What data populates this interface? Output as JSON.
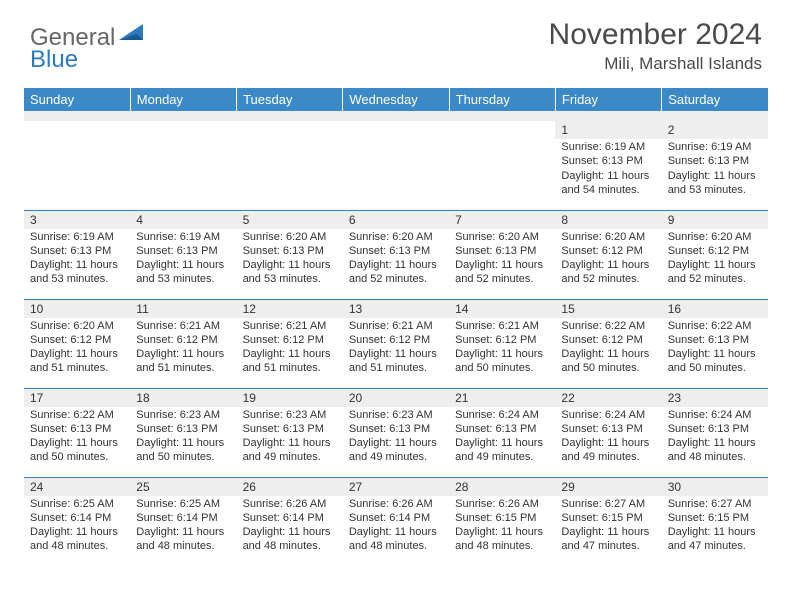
{
  "logo": {
    "text1": "General",
    "text2": "Blue"
  },
  "title": "November 2024",
  "location": "Mili, Marshall Islands",
  "colors": {
    "header_bg": "#3b89c7",
    "header_text": "#ffffff",
    "daynum_bg": "#eeeeee",
    "border": "#3b7fb3",
    "text": "#333333",
    "logo_gray": "#666666",
    "logo_blue": "#2b7bbf"
  },
  "weekdays": [
    "Sunday",
    "Monday",
    "Tuesday",
    "Wednesday",
    "Thursday",
    "Friday",
    "Saturday"
  ],
  "weeks": [
    [
      {
        "day": "",
        "lines": []
      },
      {
        "day": "",
        "lines": []
      },
      {
        "day": "",
        "lines": []
      },
      {
        "day": "",
        "lines": []
      },
      {
        "day": "",
        "lines": []
      },
      {
        "day": "1",
        "lines": [
          "Sunrise: 6:19 AM",
          "Sunset: 6:13 PM",
          "Daylight: 11 hours and 54 minutes."
        ]
      },
      {
        "day": "2",
        "lines": [
          "Sunrise: 6:19 AM",
          "Sunset: 6:13 PM",
          "Daylight: 11 hours and 53 minutes."
        ]
      }
    ],
    [
      {
        "day": "3",
        "lines": [
          "Sunrise: 6:19 AM",
          "Sunset: 6:13 PM",
          "Daylight: 11 hours and 53 minutes."
        ]
      },
      {
        "day": "4",
        "lines": [
          "Sunrise: 6:19 AM",
          "Sunset: 6:13 PM",
          "Daylight: 11 hours and 53 minutes."
        ]
      },
      {
        "day": "5",
        "lines": [
          "Sunrise: 6:20 AM",
          "Sunset: 6:13 PM",
          "Daylight: 11 hours and 53 minutes."
        ]
      },
      {
        "day": "6",
        "lines": [
          "Sunrise: 6:20 AM",
          "Sunset: 6:13 PM",
          "Daylight: 11 hours and 52 minutes."
        ]
      },
      {
        "day": "7",
        "lines": [
          "Sunrise: 6:20 AM",
          "Sunset: 6:13 PM",
          "Daylight: 11 hours and 52 minutes."
        ]
      },
      {
        "day": "8",
        "lines": [
          "Sunrise: 6:20 AM",
          "Sunset: 6:12 PM",
          "Daylight: 11 hours and 52 minutes."
        ]
      },
      {
        "day": "9",
        "lines": [
          "Sunrise: 6:20 AM",
          "Sunset: 6:12 PM",
          "Daylight: 11 hours and 52 minutes."
        ]
      }
    ],
    [
      {
        "day": "10",
        "lines": [
          "Sunrise: 6:20 AM",
          "Sunset: 6:12 PM",
          "Daylight: 11 hours and 51 minutes."
        ]
      },
      {
        "day": "11",
        "lines": [
          "Sunrise: 6:21 AM",
          "Sunset: 6:12 PM",
          "Daylight: 11 hours and 51 minutes."
        ]
      },
      {
        "day": "12",
        "lines": [
          "Sunrise: 6:21 AM",
          "Sunset: 6:12 PM",
          "Daylight: 11 hours and 51 minutes."
        ]
      },
      {
        "day": "13",
        "lines": [
          "Sunrise: 6:21 AM",
          "Sunset: 6:12 PM",
          "Daylight: 11 hours and 51 minutes."
        ]
      },
      {
        "day": "14",
        "lines": [
          "Sunrise: 6:21 AM",
          "Sunset: 6:12 PM",
          "Daylight: 11 hours and 50 minutes."
        ]
      },
      {
        "day": "15",
        "lines": [
          "Sunrise: 6:22 AM",
          "Sunset: 6:12 PM",
          "Daylight: 11 hours and 50 minutes."
        ]
      },
      {
        "day": "16",
        "lines": [
          "Sunrise: 6:22 AM",
          "Sunset: 6:13 PM",
          "Daylight: 11 hours and 50 minutes."
        ]
      }
    ],
    [
      {
        "day": "17",
        "lines": [
          "Sunrise: 6:22 AM",
          "Sunset: 6:13 PM",
          "Daylight: 11 hours and 50 minutes."
        ]
      },
      {
        "day": "18",
        "lines": [
          "Sunrise: 6:23 AM",
          "Sunset: 6:13 PM",
          "Daylight: 11 hours and 50 minutes."
        ]
      },
      {
        "day": "19",
        "lines": [
          "Sunrise: 6:23 AM",
          "Sunset: 6:13 PM",
          "Daylight: 11 hours and 49 minutes."
        ]
      },
      {
        "day": "20",
        "lines": [
          "Sunrise: 6:23 AM",
          "Sunset: 6:13 PM",
          "Daylight: 11 hours and 49 minutes."
        ]
      },
      {
        "day": "21",
        "lines": [
          "Sunrise: 6:24 AM",
          "Sunset: 6:13 PM",
          "Daylight: 11 hours and 49 minutes."
        ]
      },
      {
        "day": "22",
        "lines": [
          "Sunrise: 6:24 AM",
          "Sunset: 6:13 PM",
          "Daylight: 11 hours and 49 minutes."
        ]
      },
      {
        "day": "23",
        "lines": [
          "Sunrise: 6:24 AM",
          "Sunset: 6:13 PM",
          "Daylight: 11 hours and 48 minutes."
        ]
      }
    ],
    [
      {
        "day": "24",
        "lines": [
          "Sunrise: 6:25 AM",
          "Sunset: 6:14 PM",
          "Daylight: 11 hours and 48 minutes."
        ]
      },
      {
        "day": "25",
        "lines": [
          "Sunrise: 6:25 AM",
          "Sunset: 6:14 PM",
          "Daylight: 11 hours and 48 minutes."
        ]
      },
      {
        "day": "26",
        "lines": [
          "Sunrise: 6:26 AM",
          "Sunset: 6:14 PM",
          "Daylight: 11 hours and 48 minutes."
        ]
      },
      {
        "day": "27",
        "lines": [
          "Sunrise: 6:26 AM",
          "Sunset: 6:14 PM",
          "Daylight: 11 hours and 48 minutes."
        ]
      },
      {
        "day": "28",
        "lines": [
          "Sunrise: 6:26 AM",
          "Sunset: 6:15 PM",
          "Daylight: 11 hours and 48 minutes."
        ]
      },
      {
        "day": "29",
        "lines": [
          "Sunrise: 6:27 AM",
          "Sunset: 6:15 PM",
          "Daylight: 11 hours and 47 minutes."
        ]
      },
      {
        "day": "30",
        "lines": [
          "Sunrise: 6:27 AM",
          "Sunset: 6:15 PM",
          "Daylight: 11 hours and 47 minutes."
        ]
      }
    ]
  ]
}
